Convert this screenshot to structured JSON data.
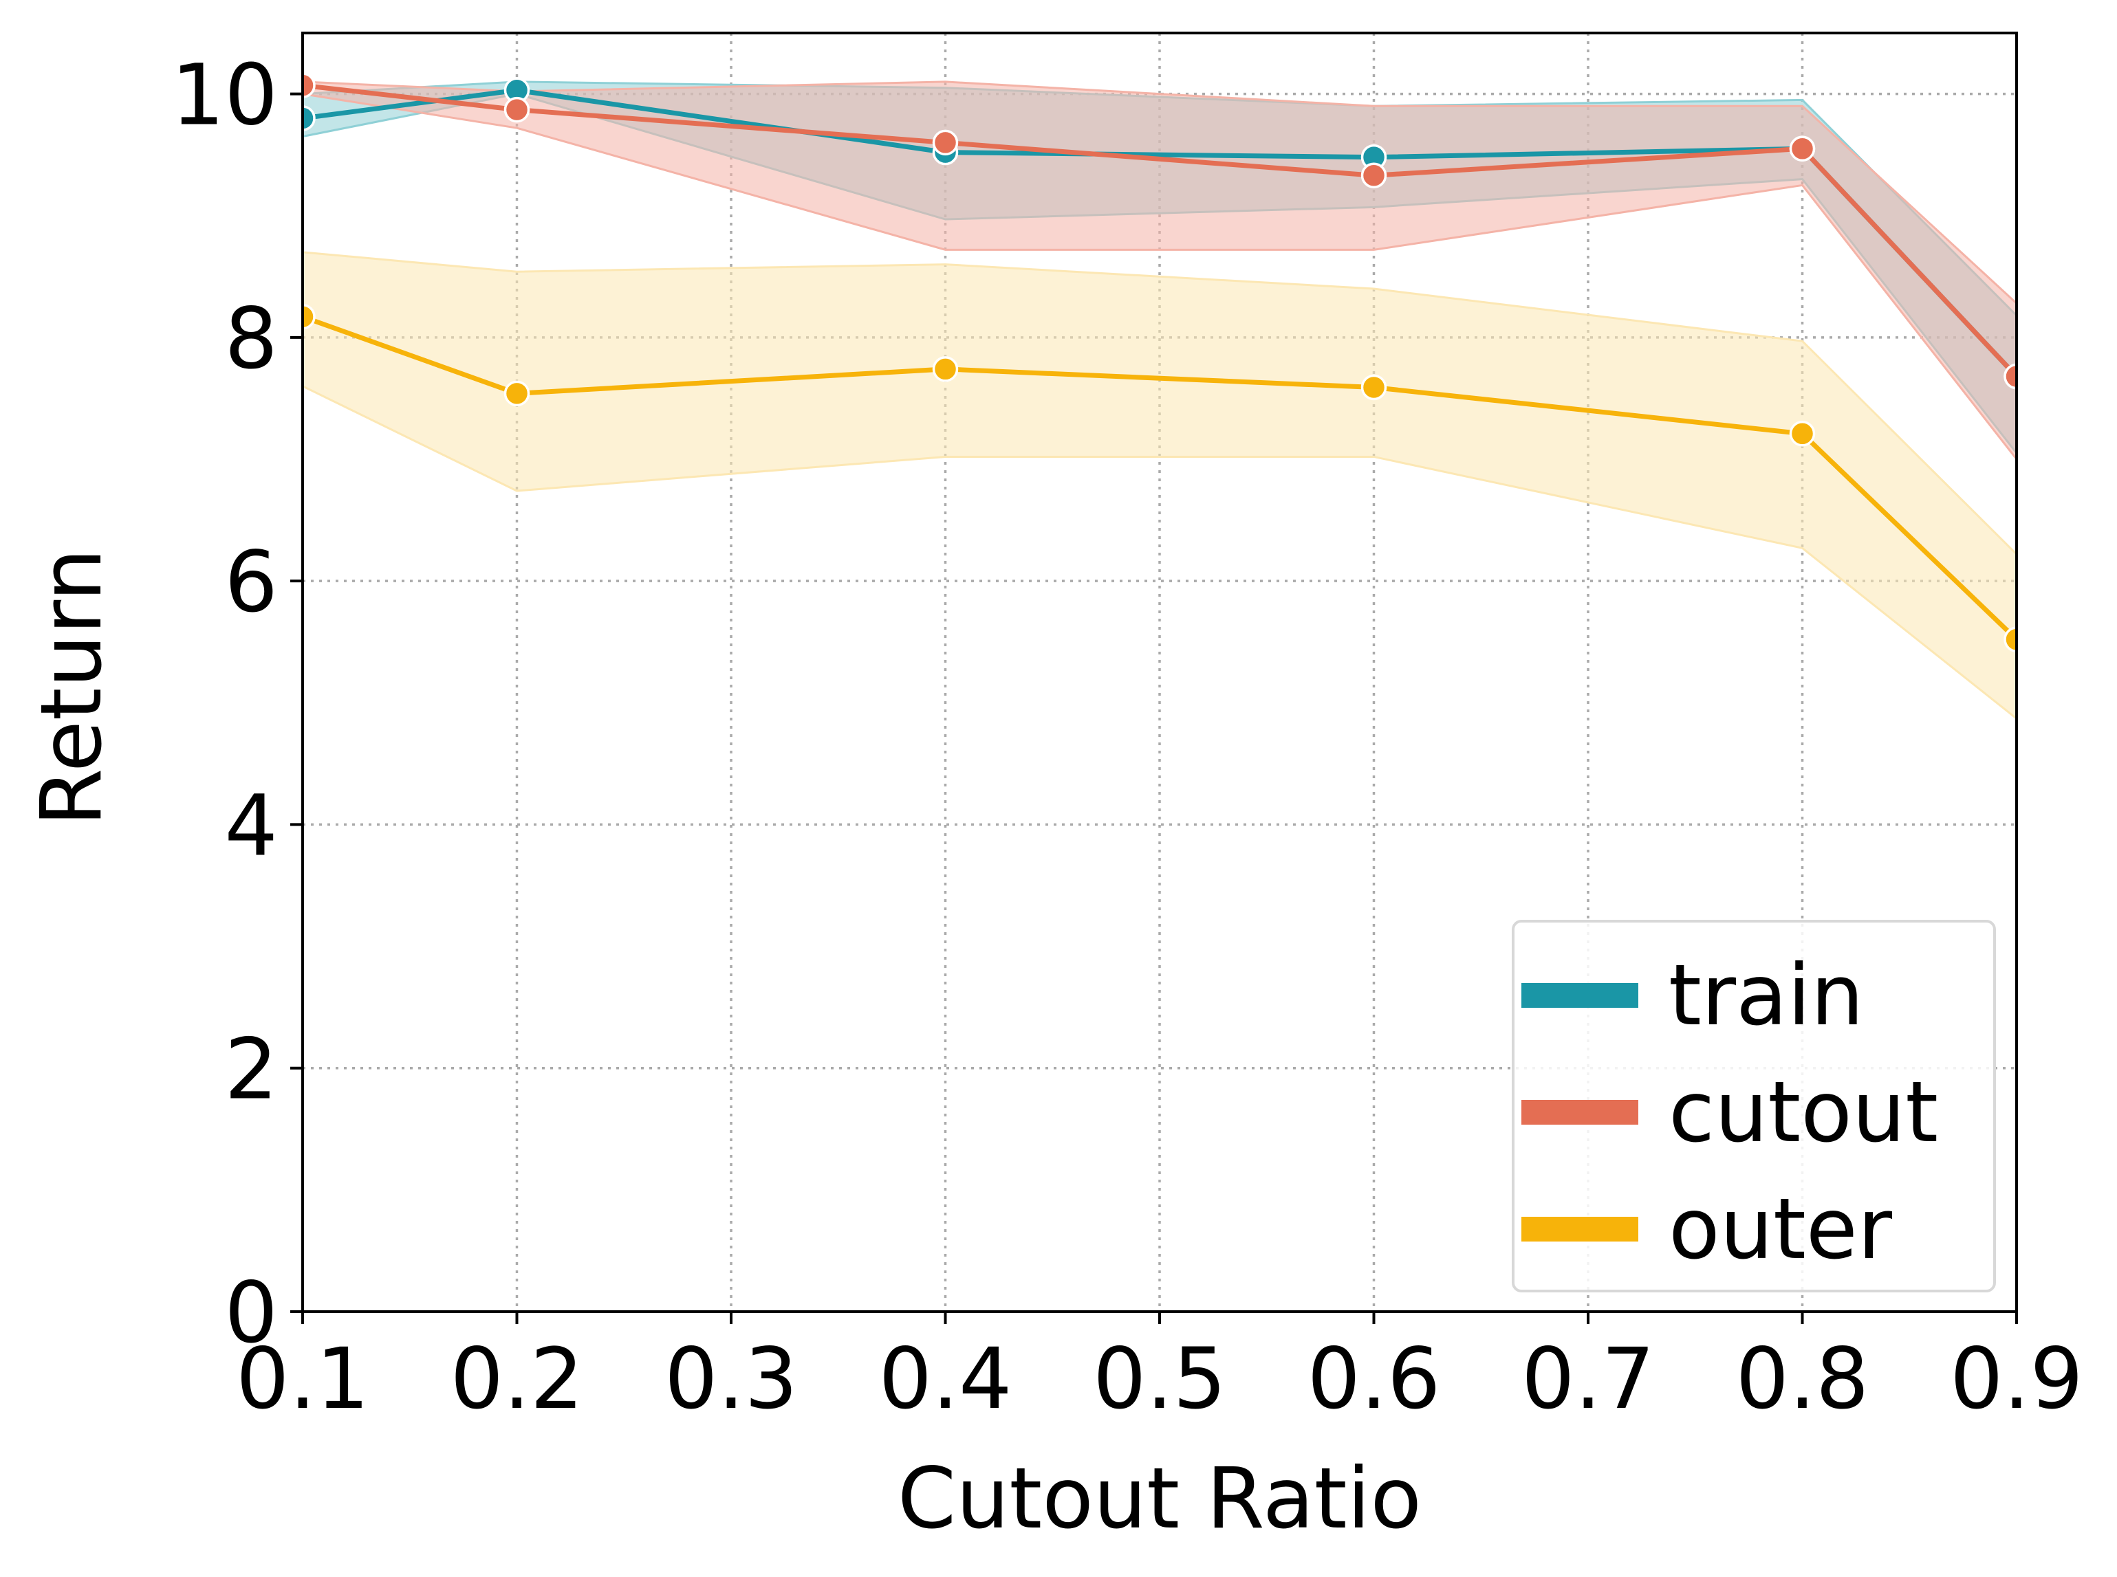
{
  "chart_data": {
    "type": "line",
    "xlabel": "Cutout Ratio",
    "ylabel": "Return",
    "xlim": [
      0.1,
      0.9
    ],
    "ylim": [
      0,
      10.5
    ],
    "xticks": [
      "0.1",
      "0.2",
      "0.3",
      "0.4",
      "0.5",
      "0.6",
      "0.7",
      "0.8",
      "0.9"
    ],
    "yticks": [
      "0",
      "2",
      "4",
      "6",
      "8",
      "10"
    ],
    "grid": true,
    "grid_style": "dotted",
    "legend_position": "lower-right",
    "x": [
      0.1,
      0.2,
      0.4,
      0.6,
      0.8,
      0.9
    ],
    "series": [
      {
        "name": "train",
        "color": "#1A96A6",
        "band_color": "#8FD0D6",
        "values": [
          9.8,
          10.03,
          9.52,
          9.48,
          9.55,
          7.68
        ],
        "lower": [
          9.65,
          10.0,
          8.97,
          9.07,
          9.3,
          7.05
        ],
        "upper": [
          10.0,
          10.1,
          10.05,
          9.9,
          9.95,
          8.18
        ]
      },
      {
        "name": "cutout",
        "color": "#E46E53",
        "band_color": "#F4B3A7",
        "values": [
          10.07,
          9.87,
          9.6,
          9.33,
          9.55,
          7.68
        ],
        "lower": [
          10.0,
          9.72,
          8.72,
          8.72,
          9.25,
          7.0
        ],
        "upper": [
          10.1,
          10.02,
          10.1,
          9.9,
          9.9,
          8.28
        ]
      },
      {
        "name": "outer",
        "color": "#F7B30A",
        "band_color": "#FCE7B3",
        "values": [
          8.17,
          7.54,
          7.74,
          7.59,
          7.21,
          5.52
        ],
        "lower": [
          7.6,
          6.74,
          7.02,
          7.02,
          6.27,
          4.87
        ],
        "upper": [
          8.7,
          8.54,
          8.6,
          8.4,
          7.97,
          6.22
        ]
      }
    ]
  }
}
